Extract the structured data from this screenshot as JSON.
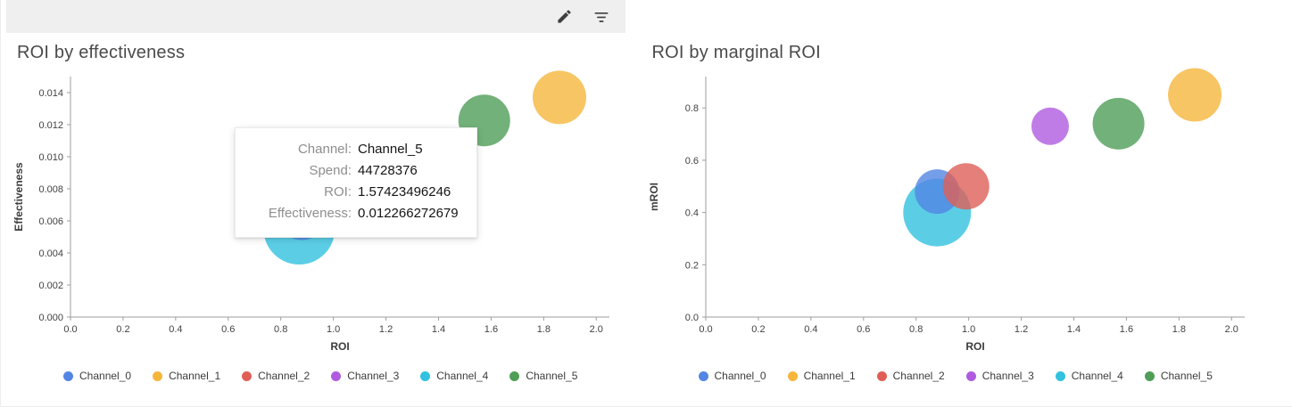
{
  "toolbar": {
    "edit_icon": "edit-icon",
    "filter_icon": "filter-icon"
  },
  "channels": [
    {
      "name": "Channel_0",
      "color": "#5386E4"
    },
    {
      "name": "Channel_1",
      "color": "#F5B63C"
    },
    {
      "name": "Channel_2",
      "color": "#DF5F57"
    },
    {
      "name": "Channel_3",
      "color": "#AF5BE0"
    },
    {
      "name": "Channel_4",
      "color": "#32C2E0"
    },
    {
      "name": "Channel_5",
      "color": "#4F9E57"
    }
  ],
  "chart_data": [
    {
      "type": "scatter",
      "subtype": "bubble",
      "title": "ROI by effectiveness",
      "xlabel": "ROI",
      "ylabel": "Effectiveness",
      "xlim": [
        0,
        2.05
      ],
      "ylim": [
        0,
        0.015
      ],
      "grid": false,
      "legend_position": "bottom",
      "xticks": [
        "0.0",
        "0.2",
        "0.4",
        "0.6",
        "0.8",
        "1.0",
        "1.2",
        "1.4",
        "1.6",
        "1.8",
        "2.0"
      ],
      "yticks": [
        "0.000",
        "0.002",
        "0.004",
        "0.006",
        "0.008",
        "0.010",
        "0.012",
        "0.014"
      ],
      "points": [
        {
          "channel": "Channel_2",
          "x": 0.99,
          "y": 0.0075,
          "r": 26
        },
        {
          "channel": "Channel_3",
          "x": 1.31,
          "y": 0.0105,
          "r": 21
        },
        {
          "channel": "Channel_4",
          "x": 0.87,
          "y": 0.0055,
          "r": 40
        },
        {
          "channel": "Channel_0",
          "x": 0.88,
          "y": 0.0063,
          "r": 27
        },
        {
          "channel": "Channel_5",
          "x": 1.574,
          "y": 0.012266,
          "r": 29
        },
        {
          "channel": "Channel_1",
          "x": 1.86,
          "y": 0.0137,
          "r": 30
        }
      ]
    },
    {
      "type": "scatter",
      "subtype": "bubble",
      "title": "ROI by marginal ROI",
      "xlabel": "ROI",
      "ylabel": "mROI",
      "xlim": [
        0,
        2.05
      ],
      "ylim": [
        0,
        0.92
      ],
      "grid": false,
      "legend_position": "bottom",
      "xticks": [
        "0.0",
        "0.2",
        "0.4",
        "0.6",
        "0.8",
        "1.0",
        "1.2",
        "1.4",
        "1.6",
        "1.8",
        "2.0"
      ],
      "yticks": [
        "0.0",
        "0.2",
        "0.4",
        "0.6",
        "0.8"
      ],
      "points": [
        {
          "channel": "Channel_4",
          "x": 0.88,
          "y": 0.4,
          "r": 38
        },
        {
          "channel": "Channel_0",
          "x": 0.88,
          "y": 0.48,
          "r": 25
        },
        {
          "channel": "Channel_2",
          "x": 0.99,
          "y": 0.5,
          "r": 26
        },
        {
          "channel": "Channel_3",
          "x": 1.31,
          "y": 0.73,
          "r": 21
        },
        {
          "channel": "Channel_5",
          "x": 1.57,
          "y": 0.74,
          "r": 29
        },
        {
          "channel": "Channel_1",
          "x": 1.86,
          "y": 0.85,
          "r": 30
        }
      ]
    }
  ],
  "tooltip": {
    "rows": [
      {
        "label": "Channel:",
        "value": "Channel_5"
      },
      {
        "label": "Spend:",
        "value": "44728376"
      },
      {
        "label": "ROI:",
        "value": "1.57423496246"
      },
      {
        "label": "Effectiveness:",
        "value": "0.012266272679"
      }
    ]
  }
}
